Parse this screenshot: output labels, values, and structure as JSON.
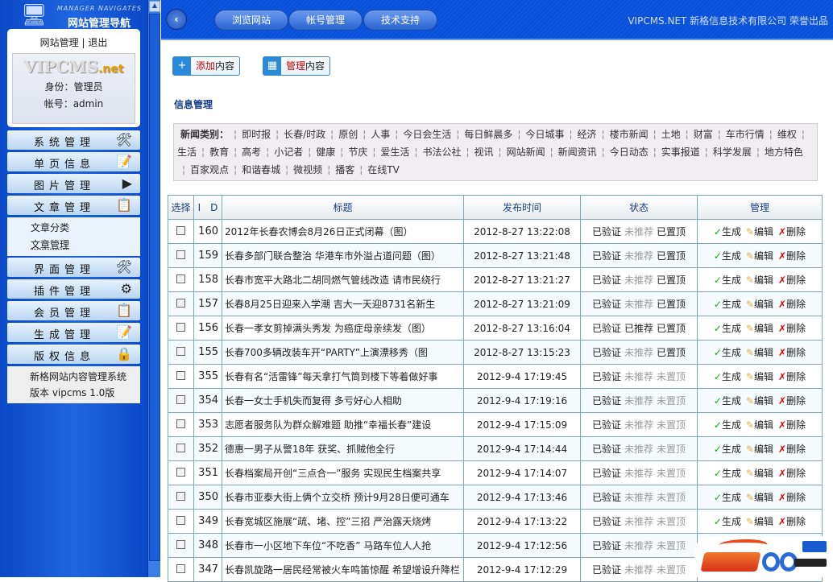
{
  "sidebar": {
    "logo_en": "MANAGER NAVIGATES",
    "logo_cn": "网站管理导航",
    "link_manage": "网站管理",
    "link_sep": "|",
    "link_logout": "退出",
    "brand": "VIPCMS",
    "brand_suffix": ".net",
    "role": "身份：管理员",
    "account": "帐号：admin",
    "menu": [
      {
        "label": "系统管理",
        "icon": "tools-icon"
      },
      {
        "label": "单页信息",
        "icon": "edit-page-icon"
      },
      {
        "label": "图片管理",
        "icon": "play-icon"
      },
      {
        "label": "文章管理",
        "icon": "document-edit-icon"
      },
      {
        "label": "界面管理",
        "icon": "tools-icon"
      },
      {
        "label": "插件管理",
        "icon": "gears-icon"
      },
      {
        "label": "会员管理",
        "icon": "document-edit-icon"
      },
      {
        "label": "生成管理",
        "icon": "edit-page-icon"
      },
      {
        "label": "版权信息",
        "icon": "lock-icon"
      }
    ],
    "submenu": [
      "文章分类",
      "文章管理"
    ],
    "footer": [
      "新格网站内容管理系统",
      "版本 vipcms 1.0版"
    ]
  },
  "header": {
    "buttons": [
      "浏览网站",
      "帐号管理",
      "技术支持"
    ],
    "credit": "VIPCMS.NET 新格信息技术有限公司 荣誉出品"
  },
  "actions": {
    "add": {
      "hl": "添加",
      "rest": "内容"
    },
    "manage": {
      "hl": "管理",
      "rest": "内容"
    }
  },
  "section_title": "信息管理",
  "categories": {
    "label": "新闻类别：",
    "items": [
      "即时报",
      "长春/时政",
      "原创",
      "人事",
      "今日会生活",
      "每日鲜晨多",
      "今日城事",
      "经济",
      "楼市新闻",
      "土地",
      "财富",
      "车市行情",
      "维权",
      "生活",
      "教育",
      "高考",
      "小记者",
      "健康",
      "节庆",
      "爱生活",
      "书法公社",
      "视讯",
      "网站新闻",
      "新闻资讯",
      "今日动态",
      "实事报道",
      "科学发展",
      "地方特色",
      "百家观点",
      "和谐春城",
      "微视频",
      "播客",
      "在线TV"
    ]
  },
  "table": {
    "headers": [
      "选择",
      "I　D",
      "标题",
      "发布时间",
      "状态",
      "管理"
    ],
    "actions": [
      "生成",
      "编辑",
      "删除"
    ],
    "rows": [
      {
        "id": "160",
        "title": "2012年长春农博会8月26日正式闭幕（图）",
        "time": "2012-8-27 13:22:08",
        "verified": "已验证",
        "recommend": "未推荐",
        "top": "已置顶"
      },
      {
        "id": "159",
        "title": "长春多部门联合整治 华港车市外溢占道问题（图）",
        "time": "2012-8-27 13:21:48",
        "verified": "已验证",
        "recommend": "未推荐",
        "top": "已置顶"
      },
      {
        "id": "158",
        "title": "长春市宽平大路北二胡同燃气管线改造 请市民绕行",
        "time": "2012-8-27 13:21:27",
        "verified": "已验证",
        "recommend": "未推荐",
        "top": "已置顶"
      },
      {
        "id": "157",
        "title": "长春8月25日迎来入学潮 吉大一天迎8731名新生",
        "time": "2012-8-27 13:21:09",
        "verified": "已验证",
        "recommend": "未推荐",
        "top": "已置顶"
      },
      {
        "id": "156",
        "title": "长春一孝女剪掉满头秀发 为癌症母亲续发（图）",
        "time": "2012-8-27 13:16:04",
        "verified": "已验证",
        "recommend": "已推荐",
        "top": "已置顶"
      },
      {
        "id": "155",
        "title": "长春700多辆改装车开“PARTY”上演漂移秀（图",
        "time": "2012-8-27 13:15:23",
        "verified": "已验证",
        "recommend": "未推荐",
        "top": "已置顶"
      },
      {
        "id": "355",
        "title": "长春有名“活雷锋”每天拿打气筒到楼下等着做好事",
        "time": "2012-9-4 17:19:45",
        "verified": "已验证",
        "recommend": "未推荐",
        "top": "未置顶"
      },
      {
        "id": "354",
        "title": "长春一女士手机失而复得 多亏好心人相助",
        "time": "2012-9-4 17:19:16",
        "verified": "已验证",
        "recommend": "未推荐",
        "top": "未置顶"
      },
      {
        "id": "353",
        "title": "志愿者服务队为群众解难题 助推“幸福长春”建设",
        "time": "2012-9-4 17:15:09",
        "verified": "已验证",
        "recommend": "未推荐",
        "top": "未置顶"
      },
      {
        "id": "352",
        "title": "德惠一男子从警18年 获奖、抓贼他全行",
        "time": "2012-9-4 17:14:44",
        "verified": "已验证",
        "recommend": "未推荐",
        "top": "未置顶"
      },
      {
        "id": "351",
        "title": "长春档案局开创“三点合一”服务 实现民生档案共享",
        "time": "2012-9-4 17:14:07",
        "verified": "已验证",
        "recommend": "未推荐",
        "top": "未置顶"
      },
      {
        "id": "350",
        "title": "长春市亚泰大街上俩个立交桥 预计9月28日便可通车",
        "time": "2012-9-4 17:13:46",
        "verified": "已验证",
        "recommend": "未推荐",
        "top": "未置顶"
      },
      {
        "id": "349",
        "title": "长春宽城区施展“疏、堵、控”三招 严治露天烧烤",
        "time": "2012-9-4 17:13:22",
        "verified": "已验证",
        "recommend": "未推荐",
        "top": "未置顶"
      },
      {
        "id": "348",
        "title": "长春市一小区地下车位“不吃香” 马路车位人人抢",
        "time": "2012-9-4 17:12:56",
        "verified": "已验证",
        "recommend": "未推荐",
        "top": "未置顶"
      },
      {
        "id": "347",
        "title": "长春凯旋路一居民经常被火车鸣笛惊醒 希望增设升降栏",
        "time": "2012-9-4 17:12:29",
        "verified": "已验证",
        "recommend": "未推荐",
        "top": "未置顶"
      }
    ]
  },
  "watermark": {
    "logo": "ASP300",
    "cn": "源码",
    "domain": ".com"
  }
}
